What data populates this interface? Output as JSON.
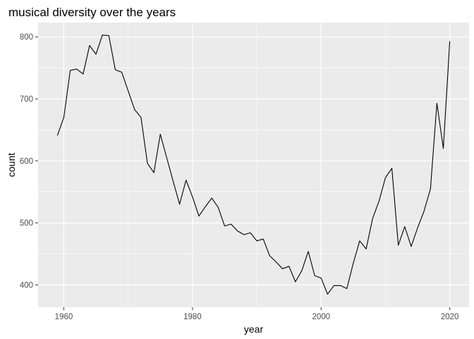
{
  "chart_data": {
    "type": "line",
    "title": "musical diversity over the years",
    "xlabel": "year",
    "ylabel": "count",
    "xlim": [
      1956,
      2023
    ],
    "ylim": [
      364,
      823
    ],
    "x_ticks": [
      1960,
      1980,
      2000,
      2020
    ],
    "x_minor_ticks": [
      1970,
      1990,
      2010
    ],
    "y_ticks": [
      400,
      500,
      600,
      700,
      800
    ],
    "y_minor_ticks": [
      450,
      550,
      650,
      750
    ],
    "grid": true,
    "legend": "none",
    "line_color": "#000000",
    "panel_background": "#ebebeb",
    "grid_color": "#ffffff",
    "series": [
      {
        "x": [
          1959,
          1960,
          1961,
          1962,
          1963,
          1964,
          1965,
          1966,
          1967,
          1968,
          1969,
          1970,
          1971,
          1972,
          1973,
          1974,
          1975,
          1976,
          1977,
          1978,
          1979,
          1980,
          1981,
          1982,
          1983,
          1984,
          1985,
          1986,
          1987,
          1988,
          1989,
          1990,
          1991,
          1992,
          1993,
          1994,
          1995,
          1996,
          1997,
          1998,
          1999,
          2000,
          2001,
          2002,
          2003,
          2004,
          2005,
          2006,
          2007,
          2008,
          2009,
          2010,
          2011,
          2012,
          2013,
          2014,
          2015,
          2016,
          2017,
          2018,
          2019,
          2020
        ],
        "values": [
          641,
          670,
          746,
          748,
          740,
          786,
          772,
          803,
          802,
          747,
          743,
          713,
          683,
          670,
          596,
          581,
          643,
          605,
          567,
          530,
          569,
          542,
          511,
          526,
          540,
          525,
          495,
          498,
          487,
          481,
          484,
          471,
          474,
          447,
          437,
          426,
          430,
          405,
          423,
          454,
          415,
          411,
          385,
          399,
          399,
          394,
          435,
          471,
          458,
          507,
          535,
          573,
          588,
          464,
          494,
          462,
          492,
          519,
          555,
          693,
          620,
          793
        ]
      }
    ]
  }
}
